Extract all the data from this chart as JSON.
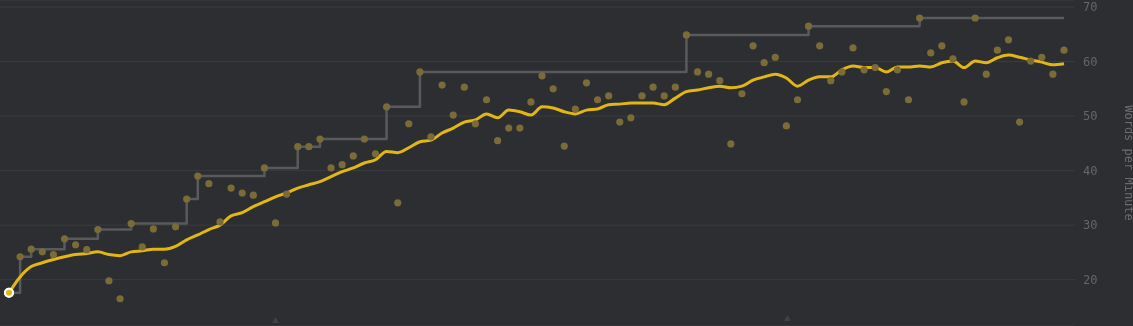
{
  "chart_data": {
    "type": "line",
    "ylabel": "Words per Minute",
    "categories": [
      null,
      null,
      null,
      null,
      null,
      null,
      null,
      null,
      null,
      null,
      null,
      null,
      null,
      null,
      null,
      null,
      null,
      null,
      null,
      null,
      null,
      null,
      null,
      null,
      null,
      null,
      null,
      null,
      null,
      null,
      null,
      null,
      null,
      null,
      null,
      null,
      null,
      null,
      null,
      null,
      null,
      null,
      null,
      null,
      null,
      null,
      null,
      null,
      null,
      null,
      null,
      null,
      null,
      null,
      null,
      null,
      null,
      null,
      null,
      null,
      null,
      null,
      null,
      null,
      null,
      null,
      null,
      null,
      null,
      null,
      null,
      null,
      null,
      null,
      null,
      null,
      null,
      null,
      null,
      null,
      null,
      null,
      null,
      null,
      null,
      null,
      null,
      null,
      null,
      null,
      null,
      null,
      null,
      null,
      null,
      null
    ],
    "series": [
      {
        "type": "step",
        "color": "#5a5a5c",
        "values": [
          17.6,
          24.2,
          25.6,
          25.6,
          25.6,
          27.5,
          27.5,
          27.5,
          29.2,
          29.2,
          29.2,
          30.3,
          30.3,
          30.3,
          30.3,
          30.3,
          34.8,
          39.0,
          39.0,
          39.0,
          39.0,
          39.0,
          39.0,
          40.5,
          40.5,
          40.5,
          44.4,
          44.4,
          45.8,
          45.8,
          45.8,
          45.8,
          45.8,
          45.8,
          51.7,
          51.7,
          51.7,
          58.1,
          58.1,
          58.1,
          58.1,
          58.1,
          58.1,
          58.1,
          58.1,
          58.1,
          58.1,
          58.1,
          58.1,
          58.1,
          58.1,
          58.1,
          58.1,
          58.1,
          58.1,
          58.1,
          58.1,
          58.1,
          58.1,
          58.1,
          58.1,
          64.9,
          64.9,
          64.9,
          64.9,
          64.9,
          64.9,
          64.9,
          64.9,
          64.9,
          64.9,
          64.9,
          66.5,
          66.5,
          66.5,
          66.5,
          66.5,
          66.5,
          66.5,
          66.5,
          66.5,
          66.5,
          68.0,
          68.0,
          68.0,
          68.0,
          68.0,
          68.0,
          68.0,
          68.0,
          68.0,
          68.0,
          68.0,
          68.0,
          68.0,
          68.0
        ]
      },
      {
        "type": "scatter",
        "color": "#7b6c37",
        "marker": "circle",
        "values": [
          17.6,
          24.2,
          25.6,
          25.1,
          24.6,
          27.5,
          26.4,
          25.5,
          29.2,
          19.8,
          16.5,
          30.3,
          26.0,
          29.3,
          23.1,
          29.7,
          34.8,
          39.0,
          37.6,
          30.6,
          36.8,
          35.9,
          35.5,
          40.5,
          30.4,
          35.7,
          44.4,
          44.4,
          45.8,
          40.5,
          41.1,
          42.7,
          45.8,
          43.1,
          51.7,
          34.1,
          48.6,
          58.1,
          46.2,
          55.7,
          50.2,
          55.3,
          48.6,
          53.0,
          45.5,
          47.8,
          47.8,
          52.6,
          57.4,
          55.0,
          44.5,
          51.3,
          56.1,
          53.0,
          53.7,
          48.9,
          49.7,
          53.7,
          55.3,
          53.7,
          55.3,
          64.9,
          58.1,
          57.7,
          56.5,
          44.9,
          54.1,
          62.9,
          59.8,
          60.8,
          48.2,
          53.0,
          66.5,
          62.9,
          56.5,
          58.1,
          62.5,
          58.5,
          58.9,
          54.5,
          58.5,
          53.0,
          68.0,
          61.6,
          62.9,
          60.5,
          52.6,
          68.0,
          57.7,
          62.1,
          64.0,
          48.9,
          60.1,
          60.8,
          57.7,
          62.1
        ]
      },
      {
        "color": "#e2b714",
        "values": [
          17.6,
          20.5,
          22.4,
          23.1,
          23.7,
          24.2,
          24.6,
          24.8,
          25.1,
          24.6,
          24.4,
          25.1,
          25.3,
          25.6,
          25.6,
          26.1,
          27.3,
          28.2,
          29.2,
          30.0,
          31.7,
          32.3,
          33.4,
          34.3,
          35.2,
          35.9,
          36.8,
          37.4,
          38.0,
          38.9,
          39.8,
          40.5,
          41.4,
          42.0,
          43.5,
          43.3,
          44.2,
          45.3,
          45.6,
          46.9,
          47.8,
          48.9,
          49.3,
          50.4,
          49.7,
          51.1,
          50.8,
          50.2,
          51.7,
          51.5,
          50.8,
          50.4,
          51.1,
          51.3,
          52.1,
          52.2,
          52.4,
          52.4,
          52.4,
          52.1,
          53.3,
          54.5,
          54.8,
          55.2,
          55.5,
          55.2,
          55.5,
          56.6,
          57.2,
          57.7,
          57.0,
          55.5,
          56.6,
          57.2,
          57.2,
          58.5,
          59.2,
          58.9,
          58.9,
          58.1,
          59.0,
          59.0,
          59.2,
          59.0,
          59.8,
          60.1,
          58.9,
          60.1,
          59.8,
          60.7,
          61.2,
          60.8,
          60.3,
          59.9,
          59.4,
          59.6
        ]
      }
    ],
    "ylim": [
      11.5,
      71.3
    ],
    "yticks": [
      20,
      30,
      40,
      50,
      60,
      70
    ],
    "grid": "y",
    "tick_labels": "y",
    "marker": "none",
    "line_style": "solid"
  }
}
